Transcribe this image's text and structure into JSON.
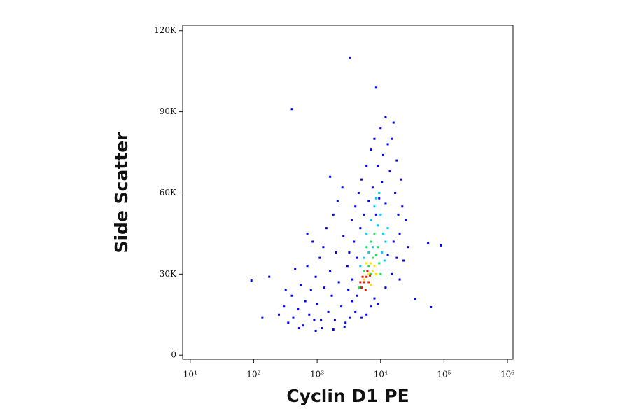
{
  "chart_data": {
    "type": "scatter",
    "xlabel": "Cyclin D1 PE",
    "ylabel": "Side Scatter",
    "xscale": "log",
    "xlim": [
      7.6,
      1224000
    ],
    "ylim": [
      -1500,
      122000
    ],
    "xticks": [
      {
        "value": 10,
        "label": "10¹"
      },
      {
        "value": 100,
        "label": "10²"
      },
      {
        "value": 1000,
        "label": "10³"
      },
      {
        "value": 10000,
        "label": "10⁴"
      },
      {
        "value": 100000,
        "label": "10⁵"
      },
      {
        "value": 1000000,
        "label": "10⁶"
      }
    ],
    "yticks": [
      0,
      {
        "value": 30000,
        "label": "30K"
      },
      {
        "value": 60000,
        "label": "60K"
      },
      {
        "value": 90000,
        "label": "90K"
      },
      {
        "value": 120000,
        "label": "120K"
      }
    ],
    "series": [
      {
        "color": "#0000ff",
        "x": [
          250,
          300,
          350,
          400,
          420,
          500,
          550,
          600,
          650,
          700,
          750,
          800,
          850,
          900,
          950,
          1000,
          1100,
          1200,
          1300,
          1400,
          1500,
          1600,
          1700,
          1800,
          1900,
          2000,
          2200,
          2400,
          2600,
          2800,
          3000,
          1250,
          700,
          450,
          320,
          2100,
          1600,
          2500,
          950,
          1800,
          2700,
          520,
          1150,
          3300,
          3600,
          3100,
          4000,
          5000,
          6000,
          7000,
          8000,
          9000,
          12000,
          15000,
          18000,
          20000,
          22000,
          21000,
          18000,
          15000,
          12000,
          10000,
          8000,
          7000,
          6000,
          5000,
          4500,
          4000,
          3500,
          3800,
          4200,
          16000,
          13000,
          11000,
          9000,
          14000,
          17000,
          19000,
          16000,
          13000,
          4800,
          5500,
          7500,
          9500,
          10500,
          12000,
          6500,
          8500,
          3200,
          3600,
          4300,
          25000,
          27000,
          23000,
          20000,
          3300,
          8500,
          400,
          92,
          176,
          56000,
          89000,
          62000,
          35000,
          137
        ],
        "values": [
          15000,
          18000,
          12000,
          22000,
          14000,
          17000,
          26000,
          11000,
          20000,
          33000,
          15000,
          24000,
          42000,
          13000,
          29000,
          19000,
          36000,
          10000,
          25000,
          47000,
          16000,
          31000,
          22000,
          52000,
          13000,
          38000,
          27000,
          18000,
          44000,
          12000,
          33000,
          40000,
          45000,
          32000,
          24000,
          57000,
          66000,
          62000,
          9000,
          9500,
          10500,
          10000,
          13000,
          14000,
          20000,
          24000,
          16000,
          14000,
          15000,
          18000,
          21000,
          19000,
          25000,
          30000,
          36000,
          45000,
          55000,
          65000,
          72000,
          80000,
          88000,
          84000,
          80000,
          76000,
          70000,
          65000,
          60000,
          55000,
          50000,
          42000,
          36000,
          86000,
          78000,
          74000,
          70000,
          68000,
          60000,
          52000,
          42000,
          37000,
          47000,
          52000,
          62000,
          58000,
          64000,
          56000,
          57000,
          52000,
          38000,
          28000,
          22000,
          50000,
          40000,
          35000,
          28000,
          110000,
          99000,
          91000,
          27600,
          29000,
          41400,
          40600,
          17800,
          20700,
          14000
        ]
      },
      {
        "color": "#00c8ff",
        "x": [
          6000,
          7000,
          8000,
          9000,
          10000,
          11000,
          12000,
          7500,
          9500,
          6500,
          5500,
          10500,
          13000,
          8500,
          4800,
          11500
        ],
        "values": [
          45000,
          50000,
          55000,
          48000,
          52000,
          45000,
          42000,
          40000,
          60000,
          38000,
          36000,
          38000,
          47000,
          58000,
          33000,
          35000
        ]
      },
      {
        "color": "#20e060",
        "x": [
          6000,
          7000,
          8000,
          9000,
          6500,
          7500,
          8500,
          5500,
          9500,
          7000,
          10000,
          4600
        ],
        "values": [
          40000,
          42000,
          45000,
          40000,
          33000,
          36000,
          37000,
          31000,
          34000,
          30000,
          30000,
          25000
        ]
      },
      {
        "color": "#ffe000",
        "x": [
          5500,
          6500,
          7000,
          7500,
          8000,
          6000,
          7000,
          8500
        ],
        "values": [
          28000,
          30000,
          34000,
          31000,
          33000,
          34000,
          26000,
          30000
        ]
      },
      {
        "color": "#ff1000",
        "x": [
          5000,
          5500,
          6000,
          6500,
          5200,
          5800,
          6200,
          4800,
          6800
        ],
        "values": [
          25000,
          27000,
          29000,
          27000,
          29000,
          24000,
          31000,
          27000,
          29500
        ]
      }
    ]
  }
}
